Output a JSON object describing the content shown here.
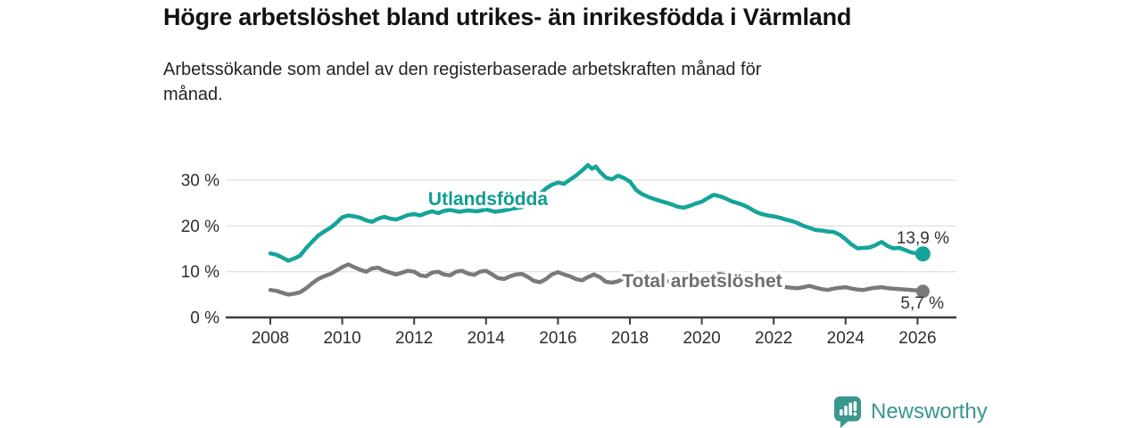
{
  "header": {
    "title": "Högre arbetslöshet bland utrikes- än inrikesfödda i Värmland",
    "subtitle": "Arbetssökande som andel av den registerbaserade arbetskraften månad för månad."
  },
  "footer": {
    "brand": "Newsworthy",
    "logo_icon": "speech-bubble-bar-chart-exclamation"
  },
  "colors": {
    "background": "#ffffff",
    "grid": "#d9d9d9",
    "axis": "#3d3d3d",
    "axis_text": "#2e2e2e",
    "title_text": "#121212",
    "brand_teal": "#38968d"
  },
  "chart_data": {
    "type": "line",
    "title": "Högre arbetslöshet bland utrikes- än inrikesfödda i Värmland",
    "subtitle": "Arbetssökande som andel av den registerbaserade arbetskraften månad för månad.",
    "xlabel": "",
    "ylabel": "",
    "xlim": [
      2006.8,
      2027.1
    ],
    "ylim": [
      0,
      35
    ],
    "grid": "horizontal-only",
    "legend": "inline-labels-on-lines",
    "x_ticks": [
      2008,
      2010,
      2012,
      2014,
      2016,
      2018,
      2020,
      2022,
      2024,
      2026
    ],
    "y_ticks": [
      {
        "value": 0,
        "label": "0 %"
      },
      {
        "value": 10,
        "label": "10 %"
      },
      {
        "value": 20,
        "label": "20 %"
      },
      {
        "value": 30,
        "label": "30 %"
      }
    ],
    "series": [
      {
        "name": "Utlandsfödda",
        "color": "#15a49a",
        "label_color": "#0f9c92",
        "end_label": "13,9 %",
        "end_value": 13.9,
        "points": [
          [
            2008,
            14
          ],
          [
            2008.17,
            13.7
          ],
          [
            2008.33,
            13.1
          ],
          [
            2008.5,
            12.4
          ],
          [
            2008.67,
            12.9
          ],
          [
            2008.83,
            13.5
          ],
          [
            2009,
            15.2
          ],
          [
            2009.17,
            16.6
          ],
          [
            2009.33,
            17.9
          ],
          [
            2009.5,
            18.8
          ],
          [
            2009.67,
            19.6
          ],
          [
            2009.83,
            20.6
          ],
          [
            2010,
            21.9
          ],
          [
            2010.17,
            22.3
          ],
          [
            2010.33,
            22.1
          ],
          [
            2010.5,
            21.8
          ],
          [
            2010.67,
            21.2
          ],
          [
            2010.83,
            20.9
          ],
          [
            2011,
            21.6
          ],
          [
            2011.17,
            22
          ],
          [
            2011.33,
            21.6
          ],
          [
            2011.5,
            21.4
          ],
          [
            2011.67,
            21.9
          ],
          [
            2011.83,
            22.4
          ],
          [
            2012,
            22.6
          ],
          [
            2012.17,
            22.3
          ],
          [
            2012.33,
            22.8
          ],
          [
            2012.5,
            23.2
          ],
          [
            2012.67,
            22.8
          ],
          [
            2012.83,
            23.3
          ],
          [
            2013,
            23.5
          ],
          [
            2013.25,
            23.1
          ],
          [
            2013.5,
            23.4
          ],
          [
            2013.75,
            23.2
          ],
          [
            2014,
            23.6
          ],
          [
            2014.25,
            23.1
          ],
          [
            2014.5,
            23.4
          ],
          [
            2014.75,
            23.8
          ],
          [
            2015,
            24.1
          ],
          [
            2015.17,
            24.9
          ],
          [
            2015.33,
            25.6
          ],
          [
            2015.5,
            27
          ],
          [
            2015.67,
            28.2
          ],
          [
            2015.83,
            29
          ],
          [
            2016,
            29.5
          ],
          [
            2016.17,
            29.2
          ],
          [
            2016.33,
            30.1
          ],
          [
            2016.5,
            31
          ],
          [
            2016.67,
            32.1
          ],
          [
            2016.83,
            33.3
          ],
          [
            2016.95,
            32.5
          ],
          [
            2017.05,
            33
          ],
          [
            2017.17,
            31.8
          ],
          [
            2017.33,
            30.6
          ],
          [
            2017.5,
            30.2
          ],
          [
            2017.67,
            31
          ],
          [
            2017.83,
            30.5
          ],
          [
            2018,
            29.7
          ],
          [
            2018.17,
            27.9
          ],
          [
            2018.33,
            27
          ],
          [
            2018.5,
            26.4
          ],
          [
            2018.67,
            25.9
          ],
          [
            2018.83,
            25.5
          ],
          [
            2019,
            25.1
          ],
          [
            2019.17,
            24.7
          ],
          [
            2019.33,
            24.2
          ],
          [
            2019.5,
            24
          ],
          [
            2019.67,
            24.4
          ],
          [
            2019.83,
            24.9
          ],
          [
            2020,
            25.3
          ],
          [
            2020.17,
            26.1
          ],
          [
            2020.33,
            26.8
          ],
          [
            2020.5,
            26.5
          ],
          [
            2020.67,
            26
          ],
          [
            2020.83,
            25.4
          ],
          [
            2021,
            25
          ],
          [
            2021.17,
            24.5
          ],
          [
            2021.33,
            23.9
          ],
          [
            2021.5,
            23.1
          ],
          [
            2021.67,
            22.6
          ],
          [
            2021.83,
            22.3
          ],
          [
            2022,
            22.1
          ],
          [
            2022.17,
            21.8
          ],
          [
            2022.33,
            21.4
          ],
          [
            2022.5,
            21.1
          ],
          [
            2022.67,
            20.6
          ],
          [
            2022.83,
            20
          ],
          [
            2023,
            19.6
          ],
          [
            2023.17,
            19.1
          ],
          [
            2023.33,
            19
          ],
          [
            2023.5,
            18.8
          ],
          [
            2023.67,
            18.7
          ],
          [
            2023.83,
            18.1
          ],
          [
            2024,
            17.1
          ],
          [
            2024.17,
            15.9
          ],
          [
            2024.33,
            15.1
          ],
          [
            2024.5,
            15.2
          ],
          [
            2024.67,
            15.3
          ],
          [
            2024.83,
            15.8
          ],
          [
            2025,
            16.5
          ],
          [
            2025.17,
            15.6
          ],
          [
            2025.33,
            15.1
          ],
          [
            2025.5,
            15.2
          ],
          [
            2025.67,
            14.7
          ],
          [
            2025.83,
            14.2
          ],
          [
            2026,
            14
          ],
          [
            2026.15,
            13.9
          ]
        ]
      },
      {
        "name": "Total arbetslöshet",
        "color": "#7a7a7a",
        "label_color": "#6e6e6e",
        "end_label": "5,7 %",
        "end_value": 5.7,
        "points": [
          [
            2008,
            6
          ],
          [
            2008.17,
            5.8
          ],
          [
            2008.33,
            5.4
          ],
          [
            2008.5,
            5
          ],
          [
            2008.67,
            5.2
          ],
          [
            2008.83,
            5.5
          ],
          [
            2009,
            6.4
          ],
          [
            2009.17,
            7.5
          ],
          [
            2009.33,
            8.4
          ],
          [
            2009.5,
            9
          ],
          [
            2009.67,
            9.5
          ],
          [
            2009.83,
            10.2
          ],
          [
            2010,
            11
          ],
          [
            2010.17,
            11.6
          ],
          [
            2010.33,
            11
          ],
          [
            2010.5,
            10.4
          ],
          [
            2010.67,
            10
          ],
          [
            2010.83,
            10.7
          ],
          [
            2011,
            10.9
          ],
          [
            2011.17,
            10.2
          ],
          [
            2011.5,
            9.4
          ],
          [
            2011.83,
            10.2
          ],
          [
            2012,
            10
          ],
          [
            2012.17,
            9.2
          ],
          [
            2012.33,
            9
          ],
          [
            2012.5,
            9.8
          ],
          [
            2012.67,
            10
          ],
          [
            2012.83,
            9.4
          ],
          [
            2013,
            9.2
          ],
          [
            2013.17,
            10
          ],
          [
            2013.33,
            10.2
          ],
          [
            2013.5,
            9.6
          ],
          [
            2013.67,
            9.3
          ],
          [
            2013.83,
            10
          ],
          [
            2014,
            10.2
          ],
          [
            2014.17,
            9.4
          ],
          [
            2014.33,
            8.6
          ],
          [
            2014.5,
            8.4
          ],
          [
            2014.67,
            9
          ],
          [
            2014.83,
            9.4
          ],
          [
            2015,
            9.5
          ],
          [
            2015.17,
            8.8
          ],
          [
            2015.33,
            8
          ],
          [
            2015.5,
            7.7
          ],
          [
            2015.67,
            8.4
          ],
          [
            2015.83,
            9.4
          ],
          [
            2016,
            9.9
          ],
          [
            2016.17,
            9.4
          ],
          [
            2016.33,
            9
          ],
          [
            2016.5,
            8.4
          ],
          [
            2016.67,
            8.1
          ],
          [
            2016.83,
            8.8
          ],
          [
            2017,
            9.4
          ],
          [
            2017.17,
            8.8
          ],
          [
            2017.33,
            7.8
          ],
          [
            2017.5,
            7.6
          ],
          [
            2017.67,
            7.9
          ],
          [
            2017.83,
            8.6
          ],
          [
            2018,
            8.8
          ],
          [
            2018.25,
            8
          ],
          [
            2018.5,
            7.6
          ],
          [
            2018.75,
            7.8
          ],
          [
            2019,
            8
          ],
          [
            2019.25,
            7.5
          ],
          [
            2019.5,
            7.3
          ],
          [
            2019.75,
            7.8
          ],
          [
            2020,
            8.2
          ],
          [
            2020.25,
            9.2
          ],
          [
            2020.5,
            9.5
          ],
          [
            2020.75,
            9.1
          ],
          [
            2021,
            8.7
          ],
          [
            2021.25,
            8.1
          ],
          [
            2021.5,
            7.6
          ],
          [
            2021.75,
            7.2
          ],
          [
            2022,
            7
          ],
          [
            2022.25,
            6.7
          ],
          [
            2022.5,
            6.5
          ],
          [
            2022.67,
            6.4
          ],
          [
            2022.83,
            6.6
          ],
          [
            2023,
            6.9
          ],
          [
            2023.17,
            6.5
          ],
          [
            2023.33,
            6.2
          ],
          [
            2023.5,
            6
          ],
          [
            2023.67,
            6.3
          ],
          [
            2023.83,
            6.5
          ],
          [
            2024,
            6.6
          ],
          [
            2024.17,
            6.3
          ],
          [
            2024.33,
            6.1
          ],
          [
            2024.5,
            6
          ],
          [
            2024.67,
            6.3
          ],
          [
            2024.83,
            6.5
          ],
          [
            2025,
            6.6
          ],
          [
            2025.17,
            6.4
          ],
          [
            2025.33,
            6.3
          ],
          [
            2025.5,
            6.2
          ],
          [
            2025.67,
            6.1
          ],
          [
            2025.83,
            6
          ],
          [
            2026,
            5.9
          ],
          [
            2026.15,
            5.7
          ]
        ]
      }
    ]
  }
}
